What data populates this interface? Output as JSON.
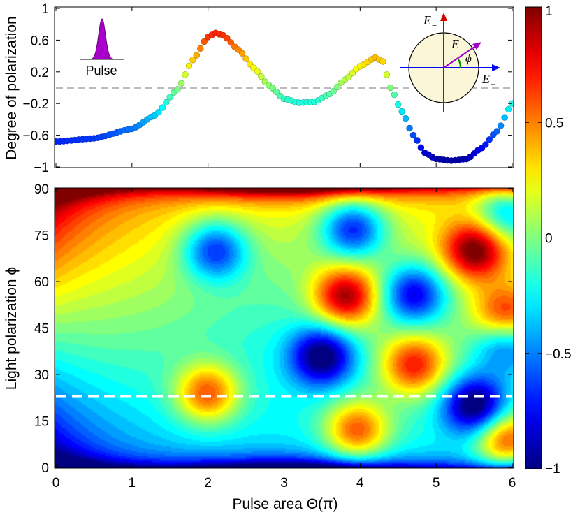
{
  "chart_data": [
    {
      "id": "top",
      "type": "scatter",
      "ylabel": "Degree of polarization",
      "xlim": [
        0,
        6
      ],
      "ylim": [
        -1,
        1
      ],
      "yticks": [
        -1,
        -0.6,
        -0.2,
        0.2,
        0.6,
        1
      ],
      "ytick_labels": [
        "−1",
        "−0.6",
        "−0.2",
        "0.2",
        "0.6",
        "1"
      ],
      "reference_line_y": 0,
      "curve_x": [
        0,
        0.5,
        1.0,
        1.3,
        1.6,
        1.8,
        2.0,
        2.1,
        2.2,
        2.4,
        2.6,
        2.8,
        3.0,
        3.2,
        3.4,
        3.6,
        3.8,
        4.0,
        4.2,
        4.3,
        4.4,
        4.55,
        4.7,
        4.85,
        5.0,
        5.2,
        5.4,
        5.6,
        5.8,
        6.0
      ],
      "curve_y": [
        -0.68,
        -0.64,
        -0.52,
        -0.35,
        -0.02,
        0.35,
        0.64,
        0.69,
        0.66,
        0.48,
        0.25,
        0.03,
        -0.14,
        -0.19,
        -0.18,
        -0.08,
        0.1,
        0.27,
        0.38,
        0.33,
        0.0,
        -0.3,
        -0.6,
        -0.82,
        -0.9,
        -0.92,
        -0.9,
        -0.76,
        -0.55,
        -0.2
      ],
      "pulse_label": "Pulse",
      "inset": {
        "E_minus": "E",
        "E_minus_sub": "−",
        "E_plus": "E",
        "E_plus_sub": "+",
        "E": "E",
        "phi": "ϕ"
      }
    },
    {
      "id": "bottom",
      "type": "heatmap",
      "ylabel": "Light polarization ϕ",
      "xlabel": "Pulse area Θ(π)",
      "xlim": [
        0,
        6
      ],
      "ylim": [
        0,
        90
      ],
      "xticks": [
        0,
        1,
        2,
        3,
        4,
        5,
        6
      ],
      "yticks": [
        0,
        15,
        30,
        45,
        60,
        75,
        90
      ],
      "dashed_line_phi": 23,
      "blobs": [
        {
          "x": 2.0,
          "phi": 24,
          "value": 0.8
        },
        {
          "x": 2.1,
          "phi": 70,
          "value": -0.78
        },
        {
          "x": 3.8,
          "phi": 55,
          "value": 0.95
        },
        {
          "x": 3.5,
          "phi": 36,
          "value": -0.95
        },
        {
          "x": 3.95,
          "phi": 12,
          "value": 0.8
        },
        {
          "x": 3.9,
          "phi": 77,
          "value": -0.85
        },
        {
          "x": 4.7,
          "phi": 33,
          "value": 0.8
        },
        {
          "x": 4.7,
          "phi": 56,
          "value": -0.85
        },
        {
          "x": 5.5,
          "phi": 70,
          "value": 0.95
        },
        {
          "x": 5.5,
          "phi": 20,
          "value": -1.0
        },
        {
          "x": 5.9,
          "phi": 9,
          "value": 0.85
        },
        {
          "x": 5.9,
          "phi": 49,
          "value": 0.75
        },
        {
          "x": 5.9,
          "phi": 40,
          "value": -0.6
        },
        {
          "x": 5.9,
          "phi": 82,
          "value": -0.6
        }
      ]
    }
  ],
  "colorbar": {
    "ticks": [
      -1,
      -0.5,
      0,
      0.5,
      1
    ],
    "tick_labels": [
      "−1",
      "−0.5",
      "0",
      "0.5",
      "1"
    ],
    "range": [
      -1,
      1
    ]
  }
}
